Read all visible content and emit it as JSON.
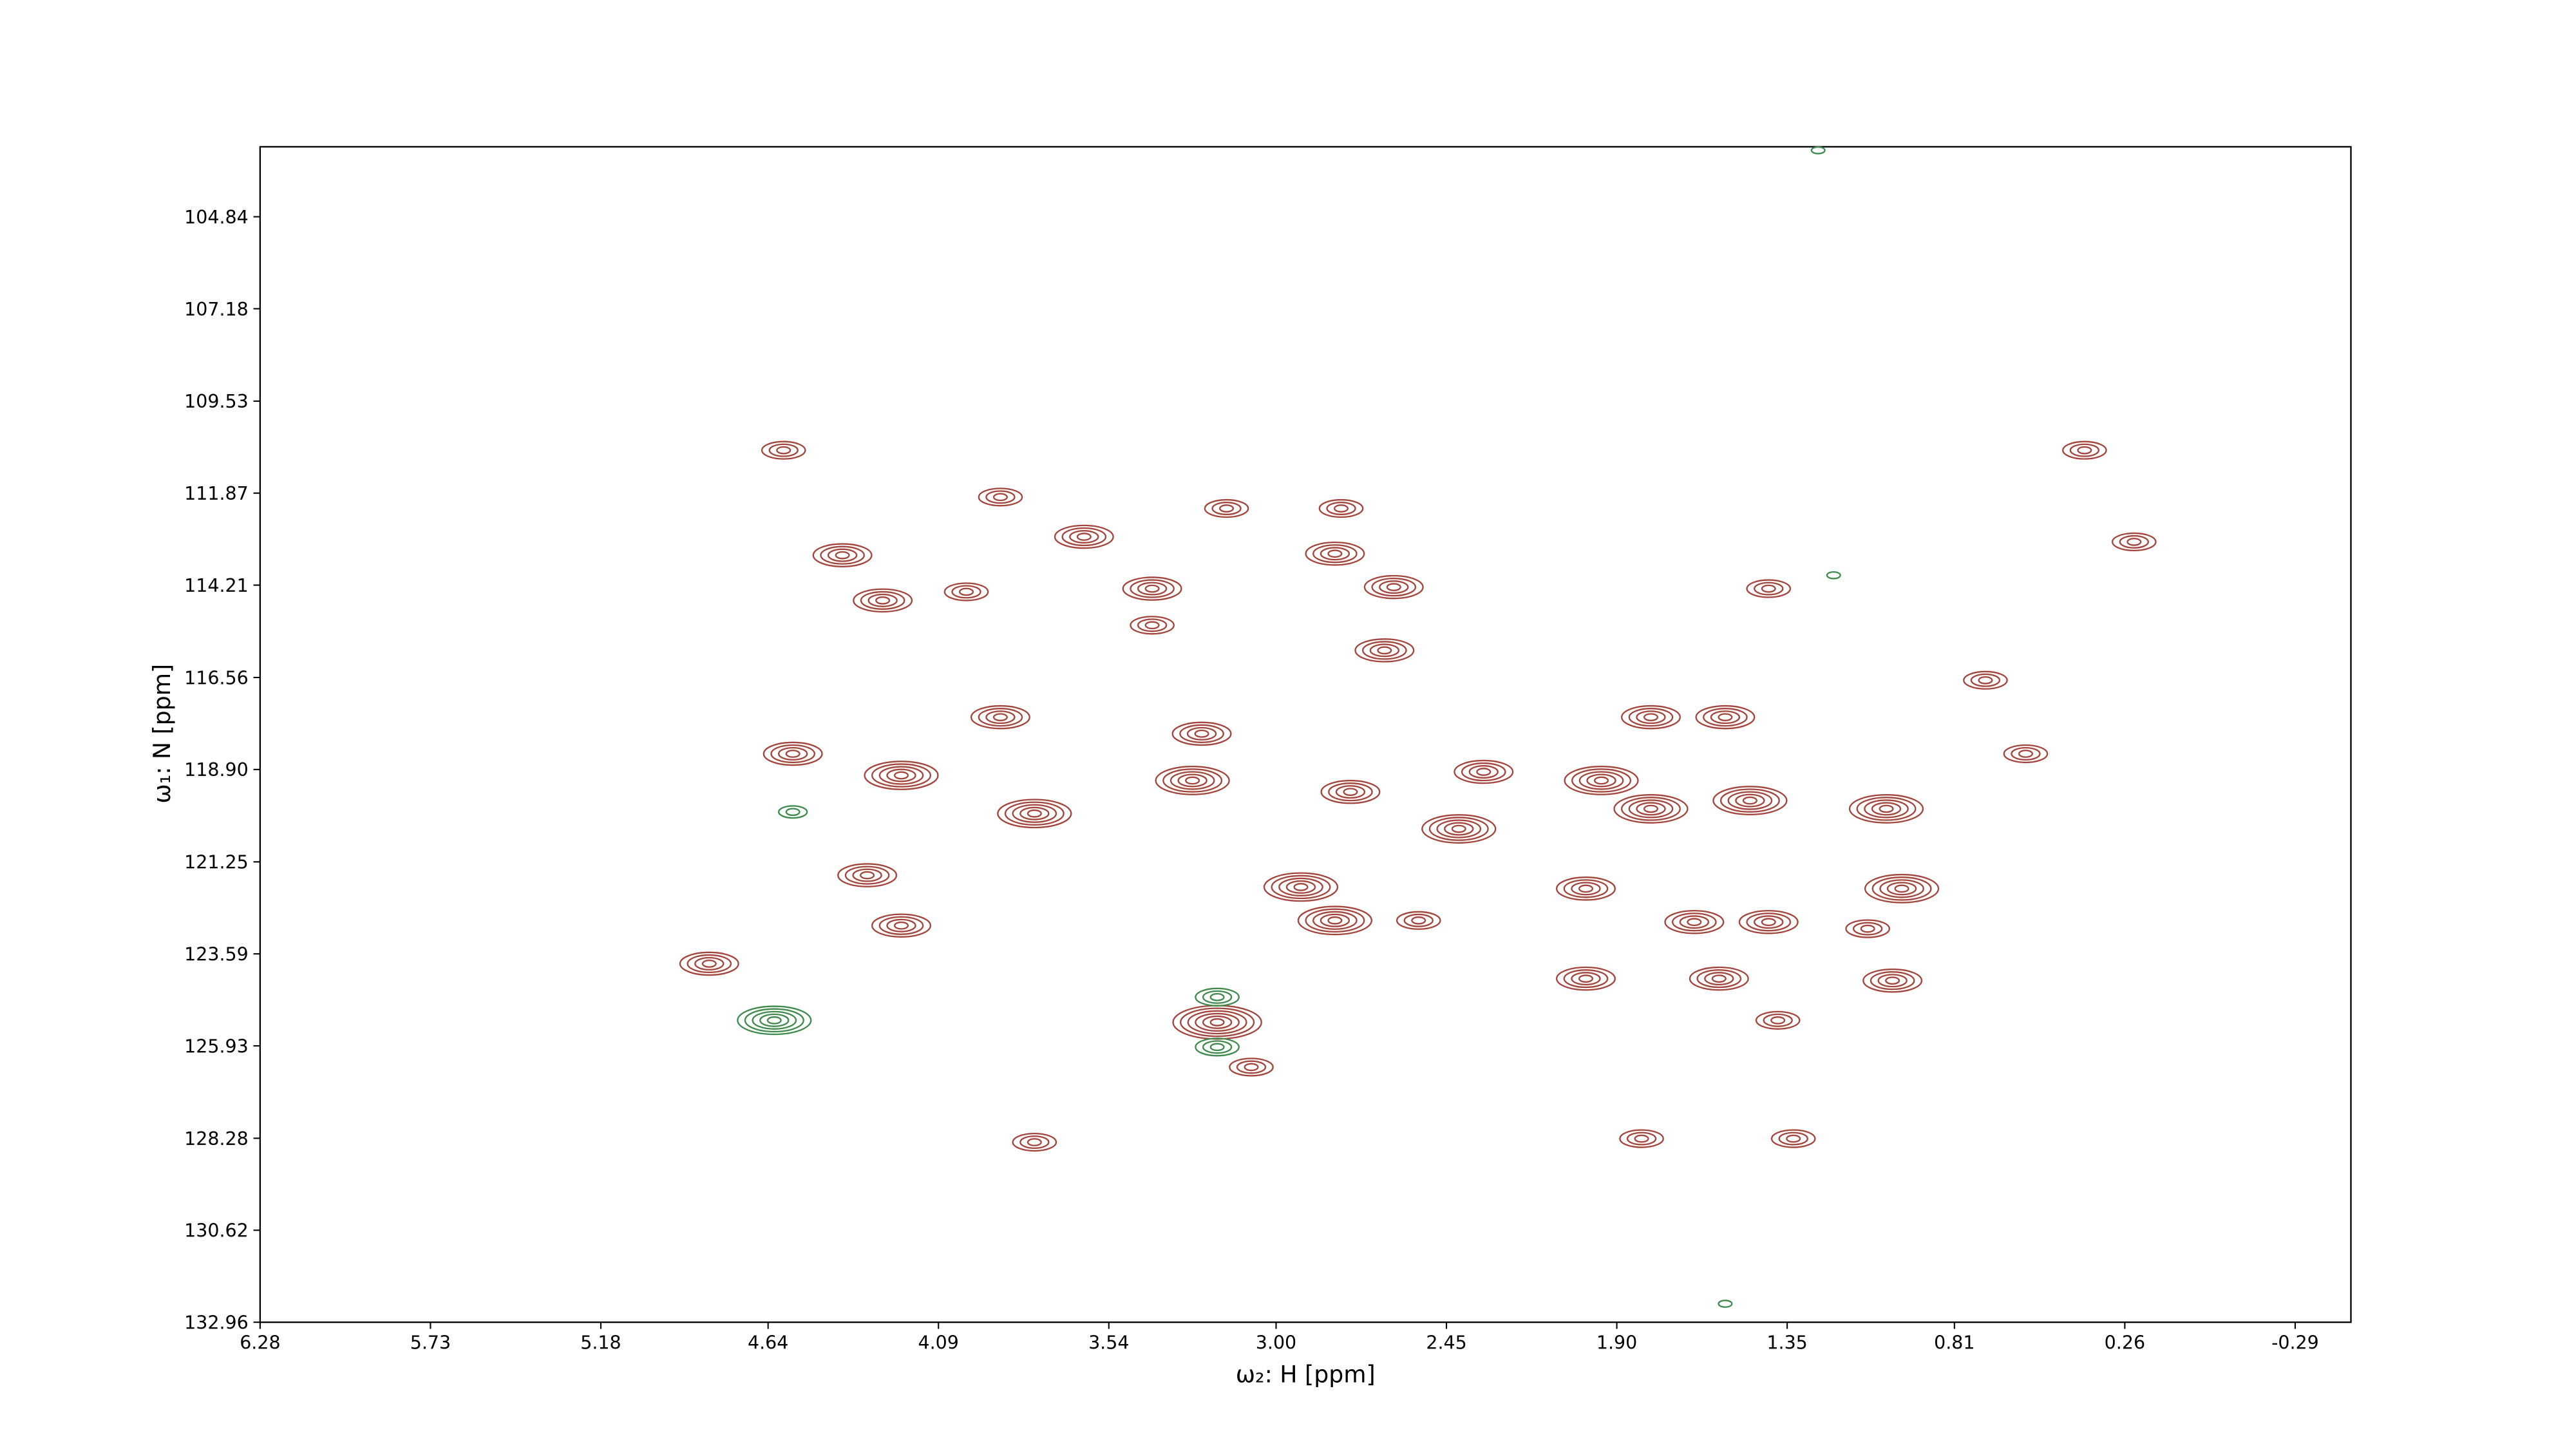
{
  "chart_data": {
    "type": "contour",
    "xlabel": "ω₂: H [ppm]",
    "ylabel": "ω₁: N [ppm]",
    "xlim": [
      6.28,
      -0.47
    ],
    "ylim": [
      132.96,
      103.06
    ],
    "xticks": [
      6.28,
      5.73,
      5.18,
      4.64,
      4.09,
      3.54,
      {
        "value": 3,
        "label": "3.00"
      },
      2.45,
      {
        "value": 1.9,
        "label": "1.90"
      },
      1.35,
      0.81,
      0.26,
      -0.29
    ],
    "yticks": [
      104.84,
      107.18,
      109.53,
      111.87,
      114.21,
      116.56,
      {
        "value": 118.9,
        "label": "118.90"
      },
      121.25,
      123.59,
      125.93,
      128.28,
      130.62,
      132.96
    ],
    "positive": {
      "color": "#a3453c",
      "x": [
        4.83,
        3.19,
        4.59,
        4.4,
        4.27,
        4.0,
        3.4,
        3.4,
        3.16,
        2.79,
        2.81,
        2.62,
        2.65,
        3.62,
        3.89,
        4.56,
        4.21,
        3.78,
        3.89,
        3.24,
        3.27,
        2.76,
        2.33,
        2.41,
        1.95,
        1.79,
        1.47,
        1.03,
        4.32,
        4.21,
        2.92,
        2.81,
        2.54,
        2.0,
        1.65,
        1.41,
        0.98,
        1.09,
        2.0,
        1.57,
        1.01,
        1.38,
        3.08,
        3.78,
        1.82,
        1.33,
        0.39,
        0.23,
        0.71,
        0.58,
        1.55,
        1.79,
        1.41
      ],
      "y": [
        123.84,
        125.33,
        110.78,
        113.45,
        114.6,
        114.38,
        114.3,
        115.23,
        112.26,
        112.26,
        113.41,
        114.26,
        115.87,
        112.98,
        111.97,
        118.5,
        119.05,
        120.02,
        117.57,
        117.99,
        119.18,
        119.47,
        118.96,
        120.41,
        119.18,
        119.9,
        119.69,
        119.9,
        121.59,
        122.87,
        121.89,
        122.74,
        122.74,
        121.93,
        122.78,
        122.78,
        121.93,
        122.95,
        124.22,
        124.22,
        124.27,
        125.28,
        126.47,
        128.38,
        128.29,
        128.29,
        110.78,
        113.11,
        116.63,
        118.5,
        117.57,
        117.57,
        114.3
      ],
      "levels": [
        4,
        6,
        3,
        4,
        4,
        3,
        4,
        3,
        3,
        3,
        4,
        4,
        4,
        4,
        3,
        4,
        5,
        5,
        4,
        4,
        5,
        4,
        4,
        5,
        5,
        5,
        5,
        5,
        4,
        4,
        5,
        5,
        3,
        4,
        4,
        4,
        5,
        3,
        4,
        4,
        4,
        3,
        3,
        3,
        3,
        3,
        3,
        3,
        3,
        3,
        4,
        4,
        3
      ]
    },
    "negative": {
      "color": "#3f8a4c",
      "x": [
        4.62,
        3.19,
        3.19,
        1.2,
        4.56,
        1.55,
        1.25
      ],
      "y": [
        125.28,
        124.69,
        125.96,
        113.96,
        119.98,
        132.49,
        103.15
      ],
      "levels": [
        5,
        3,
        3,
        1,
        2,
        1,
        1
      ]
    }
  }
}
